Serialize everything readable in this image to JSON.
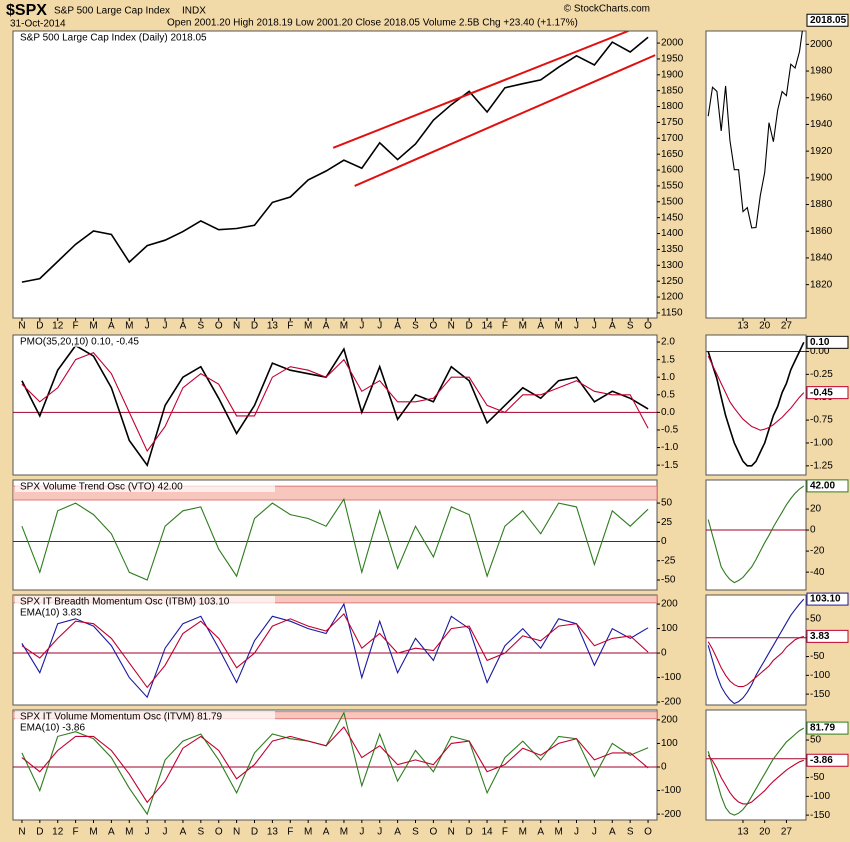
{
  "header": {
    "symbol": "$SPX",
    "name": "S&P 500 Large Cap Index",
    "exchange": "INDX",
    "date": "31-Oct-2014",
    "quote": "Open 2001.20  High 2018.19  Low 2001.20  Close 2018.05  Volume 2.5B  Chg +23.40 (+1.17%)",
    "credit": "© StockCharts.com"
  },
  "chart_data": [
    {
      "type": "line",
      "title": "S&P 500 Large Cap Index (Daily) 2018.05",
      "categories": [
        "N",
        "D",
        "12",
        "F",
        "M",
        "A",
        "M",
        "J",
        "J",
        "A",
        "S",
        "O",
        "N",
        "D",
        "13",
        "F",
        "M",
        "A",
        "M",
        "J",
        "J",
        "A",
        "S",
        "O",
        "N",
        "D",
        "14",
        "F",
        "M",
        "A",
        "M",
        "J",
        "J",
        "A",
        "S",
        "O"
      ],
      "series": [
        {
          "color": "#000000",
          "values": [
            1247,
            1258,
            1312,
            1366,
            1408,
            1397,
            1310,
            1362,
            1379,
            1406,
            1440,
            1412,
            1416,
            1426,
            1498,
            1515,
            1569,
            1597,
            1631,
            1606,
            1686,
            1633,
            1682,
            1757,
            1806,
            1848,
            1783,
            1859,
            1872,
            1884,
            1924,
            1960,
            1931,
            2003,
            1972,
            2018.05
          ]
        }
      ],
      "ylim": [
        1134,
        2038
      ],
      "yticks": [
        1150,
        1200,
        1250,
        1300,
        1350,
        1400,
        1450,
        1500,
        1550,
        1600,
        1650,
        1700,
        1750,
        1800,
        1850,
        1900,
        1950,
        2000
      ],
      "trendlines": [
        {
          "color": "#e01010",
          "x": [
            17.4,
            33.9
          ],
          "y": [
            1670,
            2038
          ]
        },
        {
          "color": "#e01010",
          "x": [
            18.6,
            35.4
          ],
          "y": [
            1550,
            1962
          ]
        }
      ]
    },
    {
      "type": "line",
      "categories": [
        null,
        null,
        null,
        null,
        null,
        null,
        null,
        null,
        "13",
        null,
        null,
        null,
        null,
        "20",
        null,
        null,
        null,
        null,
        "27",
        null,
        null,
        null,
        null
      ],
      "series": [
        {
          "color": "#000000",
          "values": [
            1946.2,
            1967.9,
            1964.8,
            1935.1,
            1968.9,
            1928.2,
            1906.1,
            1906.1,
            1874.7,
            1877.7,
            1862.5,
            1862.8,
            1886.8,
            1904.0,
            1941.3,
            1927.1,
            1950.8,
            1964.6,
            1961.6,
            1985.1,
            1982.3,
            1994.6,
            2018.05
          ]
        }
      ],
      "ylim": [
        1795,
        2010
      ],
      "yticks": [
        1820,
        1840,
        1860,
        1880,
        1900,
        1920,
        1940,
        1960,
        1980,
        2000
      ],
      "last_labels": [
        {
          "value": 2018.05,
          "label": "2018.05",
          "color": "#000000"
        }
      ]
    },
    {
      "type": "line",
      "title": "PMO(35,20,10) 0.10, -0.45",
      "series": [
        {
          "color": "#000000",
          "values": [
            0.9,
            -0.1,
            1.2,
            1.9,
            1.6,
            0.7,
            -0.8,
            -1.5,
            0.2,
            1.0,
            1.3,
            0.4,
            -0.6,
            0.2,
            1.4,
            1.2,
            1.1,
            1.0,
            1.8,
            0.0,
            1.3,
            -0.2,
            0.5,
            0.3,
            1.3,
            0.9,
            -0.3,
            0.2,
            0.7,
            0.4,
            0.9,
            1.0,
            0.3,
            0.6,
            0.4,
            0.1
          ]
        },
        {
          "color": "#c00030",
          "values": [
            0.8,
            0.3,
            0.7,
            1.5,
            1.7,
            1.1,
            0.0,
            -1.1,
            -0.4,
            0.7,
            1.1,
            0.8,
            -0.1,
            -0.1,
            1.0,
            1.3,
            1.2,
            1.0,
            1.5,
            0.6,
            0.9,
            0.3,
            0.3,
            0.4,
            1.0,
            1.0,
            0.2,
            0.0,
            0.5,
            0.5,
            0.7,
            0.9,
            0.6,
            0.5,
            0.5,
            -0.45
          ]
        }
      ],
      "ylim": [
        -1.78,
        2.2
      ],
      "ref": 0,
      "yticks": [
        {
          "value": 2,
          "label": "2.0"
        },
        {
          "value": 1.5,
          "label": "1.5"
        },
        {
          "value": 1,
          "label": "1.0"
        },
        {
          "value": 0.5,
          "label": "0.5"
        },
        {
          "value": 0,
          "label": "0.0"
        },
        {
          "value": -0.5,
          "label": "-0.5"
        },
        {
          "value": -1,
          "label": "-1.0"
        },
        {
          "value": -1.5,
          "label": "-1.5"
        }
      ]
    },
    {
      "type": "line",
      "series": [
        {
          "color": "#000000",
          "values": [
            0.0,
            -0.15,
            -0.3,
            -0.5,
            -0.7,
            -0.85,
            -1.0,
            -1.1,
            -1.2,
            -1.25,
            -1.25,
            -1.2,
            -1.1,
            -1.0,
            -0.85,
            -0.7,
            -0.6,
            -0.45,
            -0.35,
            -0.2,
            -0.1,
            0.0,
            0.1
          ]
        },
        {
          "color": "#c00030",
          "values": [
            -0.05,
            -0.15,
            -0.25,
            -0.35,
            -0.45,
            -0.55,
            -0.62,
            -0.68,
            -0.74,
            -0.78,
            -0.82,
            -0.84,
            -0.86,
            -0.85,
            -0.83,
            -0.8,
            -0.76,
            -0.72,
            -0.67,
            -0.62,
            -0.56,
            -0.5,
            -0.45
          ]
        }
      ],
      "ylim": [
        -1.35,
        0.18
      ],
      "ref": 0,
      "yticks": [
        {
          "value": 0,
          "label": "0.00"
        },
        {
          "value": -0.25,
          "label": "-0.25"
        },
        {
          "value": -0.5,
          "label": "-0.50"
        },
        {
          "value": -0.75,
          "label": "-0.75"
        },
        {
          "value": -1,
          "label": "-1.00"
        },
        {
          "value": -1.25,
          "label": "-1.25"
        }
      ],
      "last_labels": [
        {
          "value": 0.1,
          "label": "0.10",
          "color": "#000000"
        },
        {
          "value": -0.45,
          "label": "-0.45",
          "color": "#c00030"
        }
      ]
    },
    {
      "type": "line",
      "title": "SPX Volume Trend Osc (VTO) 42.00",
      "series": [
        {
          "color": "#2e7d1e",
          "values": [
            20,
            -40,
            40,
            50,
            35,
            10,
            -40,
            -50,
            20,
            40,
            45,
            -10,
            -45,
            30,
            50,
            35,
            30,
            20,
            55,
            -40,
            40,
            -35,
            20,
            -20,
            45,
            35,
            -45,
            20,
            40,
            10,
            50,
            45,
            -30,
            40,
            20,
            42
          ]
        }
      ],
      "ylim": [
        -63,
        80
      ],
      "ref": 0,
      "band": [
        54,
        72
      ],
      "yticks": [
        -50,
        -25,
        0,
        25,
        50
      ]
    },
    {
      "type": "line",
      "series": [
        {
          "color": "#2e7d1e",
          "values": [
            10,
            -5,
            -20,
            -35,
            -42,
            -47,
            -50,
            -48,
            -45,
            -40,
            -35,
            -28,
            -20,
            -12,
            -5,
            3,
            10,
            17,
            24,
            30,
            35,
            39,
            42
          ]
        }
      ],
      "ylim": [
        -57,
        47.6
      ],
      "ref": 0,
      "yticks": [
        -40,
        -20,
        0,
        20
      ],
      "last_labels": [
        {
          "value": 42,
          "label": "42.00",
          "color": "#2e7d1e"
        }
      ]
    },
    {
      "type": "line",
      "title": "SPX IT Breadth Momentum Osc (ITBM) 103.10",
      "series": [
        {
          "color": "#1a1aa0",
          "values": [
            40,
            -80,
            120,
            140,
            110,
            30,
            -100,
            -180,
            20,
            120,
            150,
            20,
            -120,
            50,
            150,
            130,
            100,
            80,
            200,
            -100,
            130,
            -80,
            60,
            -30,
            150,
            100,
            -120,
            30,
            100,
            20,
            140,
            120,
            -50,
            100,
            60,
            103.1
          ]
        },
        {
          "name": "EMA(10) 3.83",
          "color": "#c00030",
          "values": [
            30,
            -20,
            60,
            130,
            120,
            60,
            -40,
            -140,
            -50,
            80,
            130,
            60,
            -60,
            0,
            110,
            140,
            110,
            90,
            160,
            20,
            80,
            0,
            20,
            10,
            100,
            110,
            -30,
            0,
            70,
            50,
            110,
            120,
            30,
            60,
            70,
            3.83
          ]
        }
      ],
      "ylim": [
        -212,
        237
      ],
      "ref": 0,
      "band": [
        205,
        235
      ],
      "yticks": [
        -200,
        -100,
        0,
        100,
        200
      ]
    },
    {
      "type": "line",
      "series": [
        {
          "color": "#1a1aa0",
          "values": [
            -20,
            -60,
            -100,
            -130,
            -150,
            -165,
            -175,
            -170,
            -160,
            -145,
            -125,
            -100,
            -80,
            -60,
            -40,
            -20,
            0,
            20,
            40,
            60,
            75,
            90,
            103.1
          ]
        },
        {
          "color": "#c00030",
          "values": [
            -10,
            -30,
            -55,
            -80,
            -100,
            -115,
            -125,
            -130,
            -130,
            -125,
            -115,
            -105,
            -95,
            -85,
            -75,
            -60,
            -50,
            -40,
            -25,
            -15,
            -5,
            0,
            3.83
          ]
        }
      ],
      "ylim": [
        -179,
        114
      ],
      "ref": 0,
      "yticks": [
        -150,
        -100,
        -50,
        0,
        50
      ],
      "last_labels": [
        {
          "value": 103.1,
          "label": "103.10",
          "color": "#1a1aa0"
        },
        {
          "value": 3.83,
          "label": "3.83",
          "color": "#c00030"
        }
      ]
    },
    {
      "type": "line",
      "title": "SPX IT Volume Momentum Osc (ITVM) 81.79",
      "categories": [
        "N",
        "D",
        "12",
        "F",
        "M",
        "A",
        "M",
        "J",
        "J",
        "A",
        "S",
        "O",
        "N",
        "D",
        "13",
        "F",
        "M",
        "A",
        "M",
        "J",
        "J",
        "A",
        "S",
        "O",
        "N",
        "D",
        "14",
        "F",
        "M",
        "A",
        "M",
        "J",
        "J",
        "A",
        "S",
        "O"
      ],
      "series": [
        {
          "color": "#2e7d1e",
          "values": [
            60,
            -100,
            130,
            150,
            120,
            40,
            -90,
            -200,
            30,
            110,
            140,
            30,
            -110,
            60,
            140,
            120,
            110,
            90,
            230,
            -80,
            140,
            -60,
            70,
            -20,
            130,
            110,
            -110,
            40,
            110,
            30,
            130,
            120,
            -40,
            100,
            50,
            81.79
          ]
        },
        {
          "name": "EMA(10) -3.86",
          "color": "#c00030",
          "values": [
            40,
            -20,
            70,
            130,
            130,
            70,
            -30,
            -150,
            -60,
            80,
            130,
            70,
            -50,
            10,
            110,
            130,
            110,
            90,
            170,
            40,
            90,
            10,
            30,
            10,
            100,
            110,
            -20,
            10,
            80,
            50,
            100,
            120,
            30,
            60,
            60,
            -3.86
          ]
        }
      ],
      "ylim": [
        -225,
        242
      ],
      "ref": 0,
      "band": [
        205,
        235
      ],
      "yticks": [
        -200,
        -100,
        0,
        100,
        200
      ]
    },
    {
      "type": "line",
      "categories": [
        null,
        null,
        null,
        null,
        null,
        null,
        null,
        null,
        "13",
        null,
        null,
        null,
        null,
        "20",
        null,
        null,
        null,
        null,
        "27",
        null,
        null,
        null,
        null
      ],
      "series": [
        {
          "color": "#2e7d1e",
          "values": [
            20,
            -20,
            -60,
            -100,
            -130,
            -145,
            -150,
            -145,
            -135,
            -120,
            -100,
            -80,
            -60,
            -40,
            -20,
            0,
            15,
            30,
            45,
            55,
            65,
            75,
            81.79
          ]
        },
        {
          "color": "#c00030",
          "values": [
            10,
            -5,
            -25,
            -50,
            -70,
            -90,
            -105,
            -115,
            -120,
            -120,
            -115,
            -105,
            -95,
            -85,
            -72,
            -60,
            -50,
            -40,
            -30,
            -22,
            -15,
            -8,
            -3.86
          ]
        }
      ],
      "ylim": [
        -163,
        130
      ],
      "ref": 0,
      "yticks": [
        -150,
        -100,
        -50,
        0,
        50
      ],
      "last_labels": [
        {
          "value": 81.79,
          "label": "81.79",
          "color": "#2e7d1e"
        },
        {
          "value": -3.86,
          "label": "-3.86",
          "color": "#c00030"
        }
      ]
    }
  ]
}
